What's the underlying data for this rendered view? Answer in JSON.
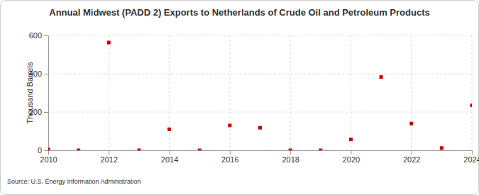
{
  "chart_data": {
    "type": "scatter",
    "title": "Annual Midwest (PADD 2) Exports to Netherlands of Crude Oil and Petroleum Products",
    "y_label": "Thousand Barrels",
    "source": "Source: U.S. Energy Information Administration",
    "x": [
      2010,
      2011,
      2012,
      2013,
      2014,
      2015,
      2016,
      2017,
      2018,
      2019,
      2020,
      2021,
      2022,
      2023,
      2024
    ],
    "values": [
      5,
      0,
      563,
      0,
      110,
      0,
      130,
      118,
      0,
      0,
      57,
      383,
      140,
      12,
      235
    ],
    "color": "#cc0000",
    "marker": "square",
    "xlim": [
      2010,
      2024
    ],
    "xticks": [
      2010,
      2012,
      2014,
      2016,
      2018,
      2020,
      2022,
      2024
    ],
    "ylim": [
      0,
      600
    ],
    "yticks": [
      0,
      200,
      400,
      600
    ],
    "grid": true
  }
}
